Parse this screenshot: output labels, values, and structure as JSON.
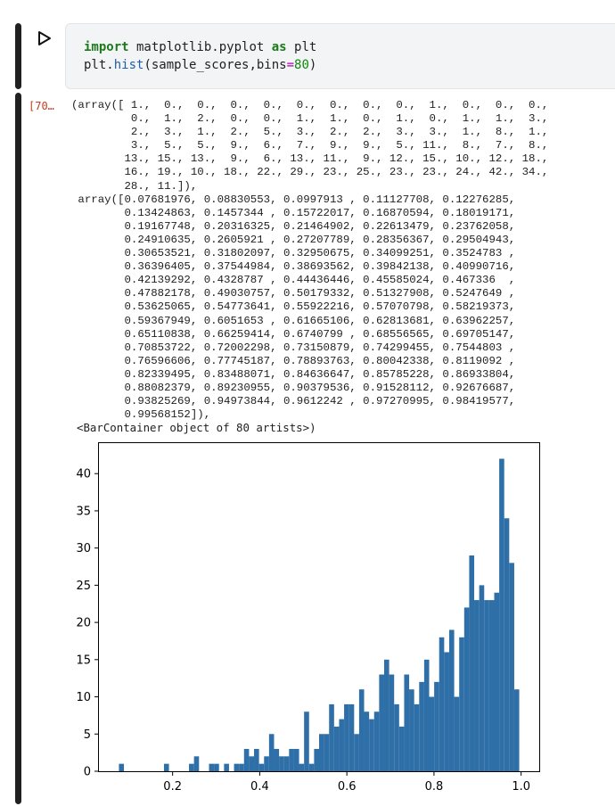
{
  "code_cell": {
    "line1": {
      "kw1": "import",
      "mod": " matplotlib.pyplot ",
      "kw2": "as",
      "alias": " plt"
    },
    "line2": {
      "obj": "plt.",
      "fn": "hist",
      "args_open": "(sample_scores,bins",
      "eq": "=",
      "num": "80",
      "close": ")"
    }
  },
  "output_cell": {
    "execution_count": "[70…",
    "counts_text": "(array([ 1.,  0.,  0.,  0.,  0.,  0.,  0.,  0.,  0.,  1.,  0.,  0.,  0.,\n         0.,  1.,  2.,  0.,  0.,  1.,  1.,  0.,  1.,  0.,  1.,  1.,  3.,\n         2.,  3.,  1.,  2.,  5.,  3.,  2.,  2.,  3.,  3.,  1.,  8.,  1.,\n         3.,  5.,  5.,  9.,  6.,  7.,  9.,  9.,  5., 11.,  8.,  7.,  8.,\n        13., 15., 13.,  9.,  6., 13., 11.,  9., 12., 15., 10., 12., 18.,\n        16., 19., 10., 18., 22., 29., 23., 25., 23., 23., 24., 42., 34.,\n        28., 11.]),\n array([0.07681976, 0.08830553, 0.0997913 , 0.11127708, 0.12276285,\n        0.13424863, 0.1457344 , 0.15722017, 0.16870594, 0.18019171,\n        0.19167748, 0.20316325, 0.21464902, 0.22613479, 0.23762058,\n        0.24910635, 0.2605921 , 0.27207789, 0.28356367, 0.29504943,\n        0.30653521, 0.31802097, 0.32950675, 0.34099251, 0.3524783 ,\n        0.36396405, 0.37544984, 0.38693562, 0.39842138, 0.40990716,\n        0.42139292, 0.4328787 , 0.44436446, 0.45585024, 0.467336  ,\n        0.47882178, 0.49030757, 0.50179332, 0.51327908, 0.5247649 ,\n        0.53625065, 0.54773641, 0.55922216, 0.57070798, 0.58219373,\n        0.59367949, 0.6051653 , 0.61665106, 0.62813681, 0.63962257,\n        0.65110838, 0.66259414, 0.6740799 , 0.68556565, 0.69705147,\n        0.70853722, 0.72002298, 0.73150879, 0.74299455, 0.7544803 ,\n        0.76596606, 0.77745187, 0.78893763, 0.80042338, 0.8119092 ,\n        0.82339495, 0.83488071, 0.84636647, 0.85785228, 0.86933804,\n        0.88082379, 0.89230955, 0.90379536, 0.91528112, 0.92676687,\n        0.93825269, 0.94973844, 0.9612242 , 0.97270995, 0.98419577,\n        0.99568152]),",
    "container_text": "<BarContainer object of 80 artists>)"
  },
  "chart_data": {
    "type": "bar",
    "title": "",
    "xlabel": "",
    "ylabel": "",
    "xlim": [
      0.0309,
      1.0416
    ],
    "ylim": [
      0,
      44.1
    ],
    "bin_start": 0.07681976,
    "bin_width": 0.01148577,
    "values": [
      1,
      0,
      0,
      0,
      0,
      0,
      0,
      0,
      0,
      1,
      0,
      0,
      0,
      0,
      1,
      2,
      0,
      0,
      1,
      1,
      0,
      1,
      0,
      1,
      1,
      3,
      2,
      3,
      1,
      2,
      5,
      3,
      2,
      2,
      3,
      3,
      1,
      8,
      1,
      3,
      5,
      5,
      9,
      6,
      7,
      9,
      9,
      5,
      11,
      8,
      7,
      8,
      13,
      15,
      13,
      9,
      6,
      13,
      11,
      9,
      12,
      15,
      10,
      12,
      18,
      16,
      19,
      10,
      18,
      22,
      29,
      23,
      25,
      23,
      23,
      24,
      42,
      34,
      28,
      11
    ],
    "xticks": [
      0.2,
      0.4,
      0.6,
      0.8,
      1.0
    ],
    "xtick_labels": [
      "0.2",
      "0.4",
      "0.6",
      "0.8",
      "1.0"
    ],
    "yticks": [
      0,
      5,
      10,
      15,
      20,
      25,
      30,
      35,
      40
    ],
    "ytick_labels": [
      "0",
      "5",
      "10",
      "15",
      "20",
      "25",
      "30",
      "35",
      "40"
    ],
    "bar_color": "#2e6fa8",
    "grid": false
  }
}
